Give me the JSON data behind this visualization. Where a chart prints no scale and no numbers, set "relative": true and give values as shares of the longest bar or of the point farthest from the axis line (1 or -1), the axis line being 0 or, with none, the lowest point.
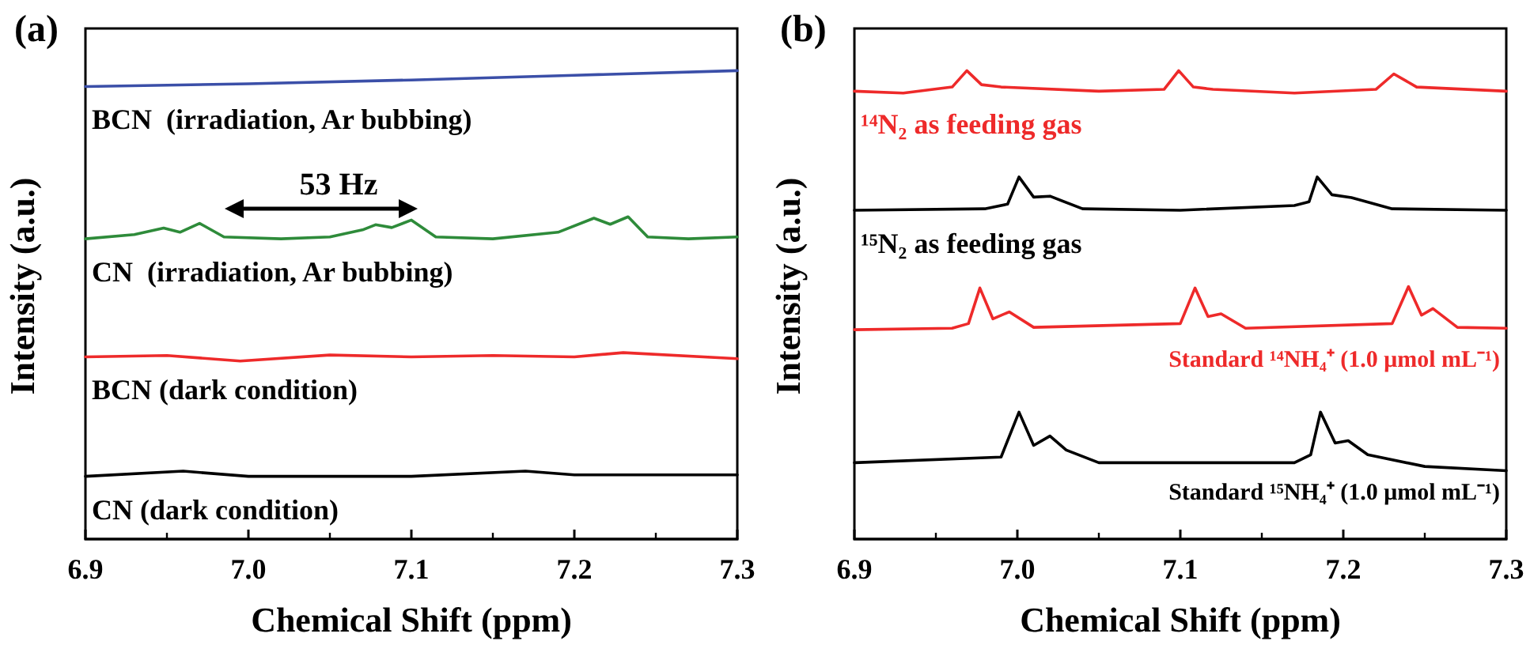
{
  "chart_data": [
    {
      "type": "line",
      "title": "(a)",
      "xlabel": "Chemical Shift (ppm)",
      "ylabel": "Intensity (a.u.)",
      "relative": true,
      "xlim": [
        6.9,
        7.3
      ],
      "xticks": [
        6.9,
        {
          "value": 7.0,
          "label": "7.0"
        },
        7.1,
        7.2,
        7.3
      ],
      "legend": false,
      "grid": false,
      "annotations": [
        "53 Hz"
      ],
      "series": [
        {
          "name": "BCN  (irradiation, Ar bubbing)",
          "color": "#3b4fa8",
          "x": [
            6.9,
            7.0,
            7.1,
            7.2,
            7.3
          ],
          "values": [
            0.966,
            0.972,
            0.98,
            0.99,
            1.0
          ]
        },
        {
          "name": "CN  (irradiation, Ar bubbing)",
          "color": "#2e8b3a",
          "x": [
            6.9,
            6.93,
            6.948,
            6.958,
            6.97,
            6.985,
            7.02,
            7.05,
            7.07,
            7.078,
            7.088,
            7.1,
            7.115,
            7.15,
            7.19,
            7.212,
            7.222,
            7.233,
            7.245,
            7.27,
            7.3
          ],
          "values": [
            0.641,
            0.65,
            0.664,
            0.655,
            0.674,
            0.645,
            0.641,
            0.645,
            0.66,
            0.671,
            0.665,
            0.681,
            0.645,
            0.641,
            0.655,
            0.685,
            0.672,
            0.688,
            0.645,
            0.641,
            0.645
          ]
        },
        {
          "name": "BCN (dark condition)",
          "color": "#ee2a2a",
          "x": [
            6.9,
            6.95,
            6.995,
            7.05,
            7.1,
            7.15,
            7.2,
            7.23,
            7.3
          ],
          "values": [
            0.389,
            0.392,
            0.38,
            0.393,
            0.389,
            0.392,
            0.389,
            0.398,
            0.385
          ]
        },
        {
          "name": "CN (dark condition)",
          "color": "#000000",
          "x": [
            6.9,
            6.96,
            7.0,
            7.1,
            7.17,
            7.2,
            7.3
          ],
          "values": [
            0.134,
            0.145,
            0.134,
            0.134,
            0.145,
            0.137,
            0.137
          ]
        }
      ]
    },
    {
      "type": "line",
      "title": "(b)",
      "xlabel": "Chemical Shift (ppm)",
      "ylabel": "Intensity (a.u.)",
      "relative": true,
      "xlim": [
        6.9,
        7.3
      ],
      "xticks": [
        6.9,
        {
          "value": 7.0,
          "label": "7.0"
        },
        7.1,
        7.2,
        7.3
      ],
      "legend": false,
      "grid": false,
      "series": [
        {
          "name": "¹⁴N₂ as feeding gas",
          "color": "#ee2a2a",
          "x": [
            6.9,
            6.93,
            6.96,
            6.969,
            6.978,
            6.99,
            7.05,
            7.09,
            7.099,
            7.108,
            7.12,
            7.17,
            7.22,
            7.231,
            7.245,
            7.3
          ],
          "values": [
            0.956,
            0.952,
            0.965,
            1.0,
            0.97,
            0.965,
            0.956,
            0.96,
            1.0,
            0.965,
            0.96,
            0.952,
            0.96,
            0.993,
            0.965,
            0.956
          ]
        },
        {
          "name": "¹⁵N₂ as feeding gas",
          "color": "#000000",
          "x": [
            6.9,
            6.98,
            6.994,
            7.001,
            7.01,
            7.02,
            7.04,
            7.1,
            7.17,
            7.179,
            7.184,
            7.193,
            7.205,
            7.23,
            7.3
          ],
          "values": [
            0.702,
            0.705,
            0.715,
            0.773,
            0.73,
            0.732,
            0.705,
            0.702,
            0.712,
            0.72,
            0.773,
            0.735,
            0.729,
            0.705,
            0.702
          ]
        },
        {
          "name": "Standard ¹⁴NH₄⁺ (1.0 μmol mL⁻¹)",
          "color": "#ee2a2a",
          "x": [
            6.9,
            6.96,
            6.97,
            6.977,
            6.985,
            6.995,
            7.01,
            7.1,
            7.109,
            7.117,
            7.125,
            7.14,
            7.23,
            7.24,
            7.248,
            7.255,
            7.27,
            7.3
          ],
          "values": [
            0.447,
            0.45,
            0.46,
            0.536,
            0.47,
            0.485,
            0.452,
            0.46,
            0.536,
            0.475,
            0.481,
            0.45,
            0.46,
            0.539,
            0.478,
            0.492,
            0.452,
            0.45
          ]
        },
        {
          "name": "Standard ¹⁵NH₄⁺ (1.0 μmol mL⁻¹)",
          "color": "#000000",
          "x": [
            6.9,
            6.99,
            7.001,
            7.01,
            7.02,
            7.03,
            7.05,
            7.17,
            7.18,
            7.186,
            7.195,
            7.203,
            7.215,
            7.25,
            7.3
          ],
          "values": [
            0.163,
            0.175,
            0.271,
            0.2,
            0.22,
            0.19,
            0.163,
            0.163,
            0.18,
            0.271,
            0.205,
            0.21,
            0.18,
            0.155,
            0.146
          ]
        }
      ]
    }
  ]
}
